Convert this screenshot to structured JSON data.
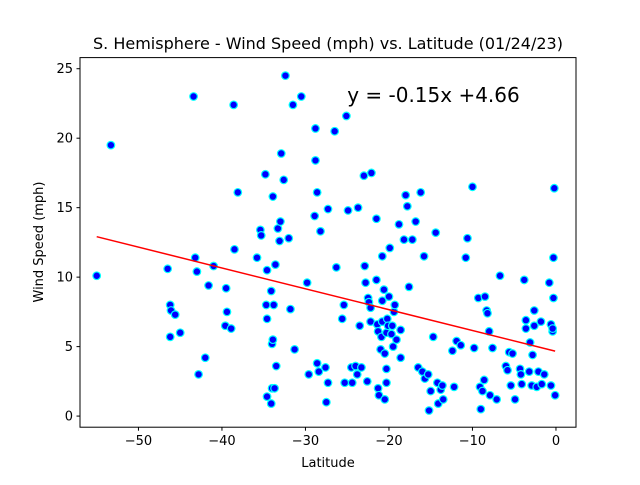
{
  "chart_data": {
    "type": "scatter",
    "title": "S. Hemisphere - Wind Speed (mph)  vs. Latitude (01/24/23)",
    "xlabel": "Latitude",
    "ylabel": "Wind Speed (mph)",
    "xlim": [
      -57,
      2.4
    ],
    "ylim": [
      -0.8,
      25.8
    ],
    "xticks": [
      -50,
      -40,
      -30,
      -20,
      -10,
      0
    ],
    "xtick_labels": [
      "−50",
      "−40",
      "−30",
      "−20",
      "−10",
      "0"
    ],
    "yticks": [
      0,
      5,
      10,
      15,
      20,
      25
    ],
    "ytick_labels": [
      "0",
      "5",
      "10",
      "15",
      "20",
      "25"
    ],
    "grid": false,
    "colors": {
      "marker_fill": "#0000ff",
      "marker_edge": "#00ffff",
      "regression": "#ff0000"
    },
    "annotation": {
      "text": "y = -0.15x +4.66",
      "x": -25,
      "y": 23.1
    },
    "regression": {
      "slope": -0.15,
      "intercept": 4.66,
      "x_range": [
        -55,
        -0.1
      ]
    },
    "points": [
      [
        -55,
        10.1
      ],
      [
        -53.3,
        19.5
      ],
      [
        -46.5,
        10.6
      ],
      [
        -46.2,
        8.0
      ],
      [
        -46.1,
        7.6
      ],
      [
        -46.2,
        5.7
      ],
      [
        -45.6,
        7.3
      ],
      [
        -45,
        6.0
      ],
      [
        -43.4,
        23.0
      ],
      [
        -43.2,
        11.4
      ],
      [
        -43,
        10.4
      ],
      [
        -42.8,
        3.0
      ],
      [
        -42,
        4.2
      ],
      [
        -41.6,
        9.4
      ],
      [
        -41,
        10.8
      ],
      [
        -39.5,
        9.2
      ],
      [
        -39.6,
        6.5
      ],
      [
        -39.4,
        7.5
      ],
      [
        -38.9,
        6.3
      ],
      [
        -38.6,
        22.4
      ],
      [
        -38.5,
        12.0
      ],
      [
        -38.1,
        16.1
      ],
      [
        -35.8,
        11.4
      ],
      [
        -35.4,
        13.4
      ],
      [
        -35.3,
        13.0
      ],
      [
        -34.8,
        17.4
      ],
      [
        -34.6,
        10.5
      ],
      [
        -34.7,
        8.0
      ],
      [
        -34.6,
        7.0
      ],
      [
        -34.6,
        1.4
      ],
      [
        -34.1,
        0.9
      ],
      [
        -34.1,
        9.0
      ],
      [
        -34.0,
        5.2
      ],
      [
        -34.0,
        2.0
      ],
      [
        -33.9,
        5.5
      ],
      [
        -33.9,
        15.8
      ],
      [
        -33.7,
        2.0
      ],
      [
        -33.8,
        8.0
      ],
      [
        -33.6,
        10.9
      ],
      [
        -33.5,
        3.6
      ],
      [
        -33.3,
        13.5
      ],
      [
        -33.1,
        12.6
      ],
      [
        -33.0,
        14.0
      ],
      [
        -32.9,
        18.9
      ],
      [
        -32.6,
        17.0
      ],
      [
        -32.4,
        24.5
      ],
      [
        -32.0,
        12.8
      ],
      [
        -31.8,
        7.7
      ],
      [
        -31.5,
        22.4
      ],
      [
        -31.3,
        4.8
      ],
      [
        -30.5,
        23.0
      ],
      [
        -29.8,
        9.6
      ],
      [
        -29.6,
        3.0
      ],
      [
        -28.8,
        20.7
      ],
      [
        -28.8,
        18.4
      ],
      [
        -28.9,
        14.4
      ],
      [
        -28.6,
        16.1
      ],
      [
        -28.6,
        3.8
      ],
      [
        -28.4,
        3.2
      ],
      [
        -28.2,
        13.3
      ],
      [
        -27.6,
        3.5
      ],
      [
        -27.5,
        1.0
      ],
      [
        -27.3,
        2.4
      ],
      [
        -27.3,
        14.9
      ],
      [
        -26.5,
        20.5
      ],
      [
        -26.3,
        10.7
      ],
      [
        -25.6,
        7.0
      ],
      [
        -25.4,
        8.0
      ],
      [
        -25.3,
        2.4
      ],
      [
        -25.1,
        21.6
      ],
      [
        -24.9,
        14.8
      ],
      [
        -24.5,
        3.5
      ],
      [
        -24.4,
        2.4
      ],
      [
        -24.0,
        3.6
      ],
      [
        -23.8,
        3.0
      ],
      [
        -23.7,
        15.0
      ],
      [
        -23.5,
        6.5
      ],
      [
        -23.3,
        3.5
      ],
      [
        -23.0,
        17.3
      ],
      [
        -22.9,
        10.8
      ],
      [
        -22.8,
        9.6
      ],
      [
        -22.6,
        2.5
      ],
      [
        -22.5,
        8.5
      ],
      [
        -22.4,
        8.2
      ],
      [
        -22.2,
        6.8
      ],
      [
        -22.2,
        7.8
      ],
      [
        -22.1,
        17.5
      ],
      [
        -21.5,
        14.2
      ],
      [
        -21.5,
        9.8
      ],
      [
        -21.4,
        6.6
      ],
      [
        -21.3,
        6.1
      ],
      [
        -21.3,
        2.0
      ],
      [
        -21.2,
        1.5
      ],
      [
        -21.0,
        4.8
      ],
      [
        -20.9,
        5.7
      ],
      [
        -20.8,
        6.8
      ],
      [
        -20.8,
        8.3
      ],
      [
        -20.8,
        11.5
      ],
      [
        -20.6,
        9.1
      ],
      [
        -20.5,
        4.5
      ],
      [
        -20.5,
        1.2
      ],
      [
        -20.3,
        3.4
      ],
      [
        -20.3,
        2.4
      ],
      [
        -20.3,
        6.0
      ],
      [
        -20.2,
        7.0
      ],
      [
        -20.1,
        6.5
      ],
      [
        -20.0,
        8.6
      ],
      [
        -19.9,
        12.1
      ],
      [
        -19.7,
        5.9
      ],
      [
        -19.6,
        6.5
      ],
      [
        -19.5,
        5.0
      ],
      [
        -19.4,
        7.5
      ],
      [
        -19.3,
        8.0
      ],
      [
        -19.1,
        5.5
      ],
      [
        -18.8,
        13.8
      ],
      [
        -18.6,
        6.2
      ],
      [
        -18.6,
        4.2
      ],
      [
        -18.2,
        12.7
      ],
      [
        -18.0,
        15.9
      ],
      [
        -17.8,
        15.1
      ],
      [
        -17.6,
        9.3
      ],
      [
        -17.2,
        12.7
      ],
      [
        -16.8,
        14.0
      ],
      [
        -16.5,
        3.5
      ],
      [
        -16.2,
        16.1
      ],
      [
        -16.0,
        3.2
      ],
      [
        -15.8,
        11.5
      ],
      [
        -15.7,
        2.7
      ],
      [
        -15.3,
        3.0
      ],
      [
        -15.2,
        0.4
      ],
      [
        -15.0,
        1.8
      ],
      [
        -14.7,
        5.7
      ],
      [
        -14.4,
        13.2
      ],
      [
        -14.2,
        2.4
      ],
      [
        -14.1,
        0.9
      ],
      [
        -13.8,
        1.9
      ],
      [
        -13.6,
        2.2
      ],
      [
        -13.5,
        1.2
      ],
      [
        -12.4,
        4.7
      ],
      [
        -12.2,
        2.1
      ],
      [
        -11.9,
        5.4
      ],
      [
        -11.4,
        5.1
      ],
      [
        -10.8,
        11.4
      ],
      [
        -10.6,
        12.8
      ],
      [
        -10.0,
        16.5
      ],
      [
        -9.8,
        4.9
      ],
      [
        -9.3,
        8.5
      ],
      [
        -9.1,
        2.1
      ],
      [
        -9.0,
        0.5
      ],
      [
        -8.8,
        1.8
      ],
      [
        -8.6,
        2.6
      ],
      [
        -8.5,
        8.6
      ],
      [
        -8.3,
        7.6
      ],
      [
        -8.2,
        7.4
      ],
      [
        -8.0,
        6.1
      ],
      [
        -7.9,
        1.5
      ],
      [
        -7.6,
        4.9
      ],
      [
        -7.1,
        1.2
      ],
      [
        -6.7,
        10.1
      ],
      [
        -6.0,
        3.6
      ],
      [
        -5.8,
        3.3
      ],
      [
        -5.6,
        4.6
      ],
      [
        -5.4,
        2.2
      ],
      [
        -5.2,
        4.5
      ],
      [
        -4.9,
        1.2
      ],
      [
        -4.3,
        3.4
      ],
      [
        -4.2,
        3.0
      ],
      [
        -4.1,
        2.3
      ],
      [
        -3.8,
        9.8
      ],
      [
        -3.6,
        6.9
      ],
      [
        -3.6,
        6.3
      ],
      [
        -3.2,
        3.2
      ],
      [
        -3.1,
        5.3
      ],
      [
        -2.9,
        2.2
      ],
      [
        -2.8,
        4.4
      ],
      [
        -2.6,
        6.5
      ],
      [
        -2.6,
        7.6
      ],
      [
        -2.3,
        2.1
      ],
      [
        -2.1,
        3.2
      ],
      [
        -1.8,
        6.8
      ],
      [
        -1.7,
        2.3
      ],
      [
        -1.4,
        3.0
      ],
      [
        -0.8,
        9.6
      ],
      [
        -0.6,
        2.2
      ],
      [
        -0.6,
        6.6
      ],
      [
        -0.4,
        6.1
      ],
      [
        -0.4,
        6.3
      ],
      [
        -0.3,
        11.4
      ],
      [
        -0.3,
        8.5
      ],
      [
        -0.2,
        16.4
      ],
      [
        -0.1,
        1.5
      ]
    ]
  }
}
